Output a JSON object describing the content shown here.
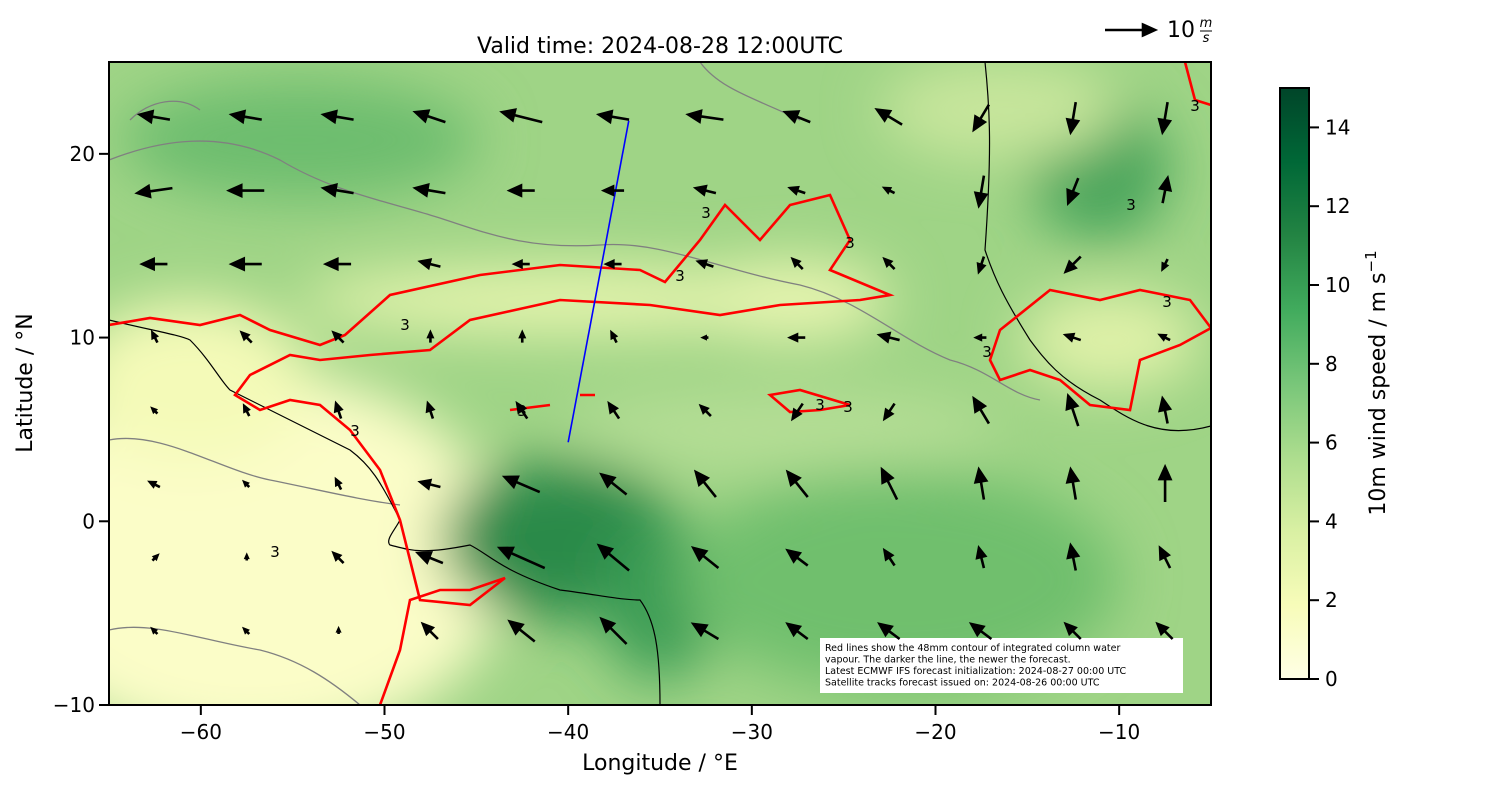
{
  "chart_data": {
    "type": "quiver_map",
    "title": "Valid time: 2024-08-28 12:00UTC",
    "xlabel": "Longitude / °E",
    "ylabel": "Latitude / °N",
    "xlim": [
      -65,
      -5
    ],
    "ylim": [
      -10,
      25
    ],
    "xticks": [
      {
        "value": -60,
        "label": "−60"
      },
      {
        "value": -50,
        "label": "−50"
      },
      {
        "value": -40,
        "label": "−40"
      },
      {
        "value": -30,
        "label": "−30"
      },
      {
        "value": -20,
        "label": "−20"
      },
      {
        "value": -10,
        "label": "−10"
      }
    ],
    "yticks": [
      {
        "value": -10,
        "label": "−10"
      },
      0,
      10,
      20
    ],
    "colorbar": {
      "label": "10m wind speed / m s",
      "label_exponent": "−1",
      "lim": [
        0,
        15
      ],
      "ticks": [
        0,
        2,
        4,
        6,
        8,
        10,
        12,
        14
      ],
      "colors": [
        "#ffffe5",
        "#f7fcb9",
        "#d9f0a3",
        "#addd8e",
        "#78c679",
        "#41ab5d",
        "#238443",
        "#006837",
        "#004529"
      ]
    },
    "quiver_key": {
      "value": 10,
      "unit_numerator": "m",
      "unit_denominator": "s"
    },
    "contour_label": "3",
    "contour_color": "#ff0000",
    "track": {
      "color": "#0000ff",
      "lon": [
        -36.7,
        -40.0
      ],
      "lat": [
        21.8,
        4.3
      ]
    },
    "wind": {
      "lons": [
        -62.5,
        -57.5,
        -52.5,
        -47.5,
        -42.5,
        -37.5,
        -32.5,
        -27.5,
        -22.5,
        -17.5,
        -12.5,
        -7.5
      ],
      "lats": [
        22,
        18,
        14,
        10,
        6,
        2,
        -2,
        -6
      ],
      "u": [
        [
          -6,
          -6,
          -6,
          -6,
          -8,
          -6,
          -7,
          -5,
          -5,
          -3,
          -1,
          -1
        ],
        [
          -7,
          -7,
          -6,
          -6,
          -5,
          -4,
          -4,
          -3,
          -2,
          -1,
          -2,
          1
        ],
        [
          -5,
          -6,
          -5,
          -4,
          -3,
          -3,
          -3,
          -2,
          -2,
          -1,
          -3,
          -1
        ],
        [
          -1,
          -2,
          -2,
          0,
          0,
          -1,
          -1,
          -3,
          -4,
          -2,
          -3,
          -2
        ],
        [
          -1,
          -1,
          -1,
          -1,
          -2,
          -2,
          -2,
          -2,
          -2,
          -3,
          -2,
          -1
        ],
        [
          -2,
          -1,
          -1,
          -4,
          -7,
          -5,
          -4,
          -4,
          -3,
          -1,
          -1,
          0
        ],
        [
          1,
          0,
          -2,
          -5,
          -9,
          -6,
          -5,
          -4,
          -2,
          -1,
          -1,
          -2
        ],
        [
          -1,
          -1,
          0,
          -3,
          -5,
          -5,
          -5,
          -4,
          -4,
          -4,
          -3,
          -3
        ]
      ],
      "v": [
        [
          1,
          1,
          1,
          2,
          2,
          1,
          1,
          2,
          3,
          -5,
          -6,
          -6
        ],
        [
          -1,
          0,
          1,
          1,
          0,
          0,
          1,
          1,
          1,
          -6,
          -5,
          5
        ],
        [
          0,
          0,
          0,
          1,
          0,
          0,
          1,
          2,
          2,
          -3,
          -3,
          -2
        ],
        [
          2,
          2,
          2,
          2,
          2,
          2,
          0,
          0,
          1,
          0,
          1,
          1
        ],
        [
          1,
          2,
          3,
          3,
          3,
          3,
          2,
          -3,
          -3,
          5,
          6,
          5
        ],
        [
          1,
          1,
          2,
          1,
          3,
          4,
          5,
          5,
          6,
          6,
          6,
          7
        ],
        [
          1,
          1,
          2,
          2,
          4,
          5,
          4,
          3,
          3,
          4,
          5,
          4
        ],
        [
          1,
          1,
          1,
          3,
          4,
          5,
          3,
          3,
          3,
          3,
          3,
          3
        ]
      ]
    },
    "annotation": [
      "Red lines show the 48mm contour of integrated column water",
      "vapour. The darker the line, the newer the forecast.",
      "Latest ECMWF IFS forecast initialization: 2024-08-27 00:00 UTC",
      "Satellite tracks forecast issued on: 2024-08-26 00:00 UTC"
    ]
  }
}
